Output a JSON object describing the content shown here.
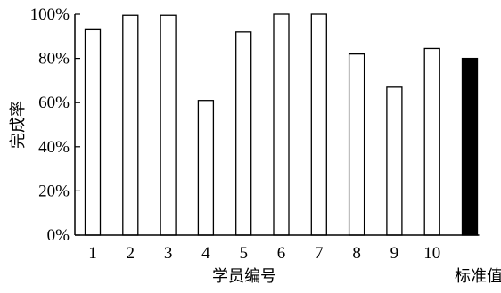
{
  "chart_data": {
    "type": "bar",
    "categories": [
      "1",
      "2",
      "3",
      "4",
      "5",
      "6",
      "7",
      "8",
      "9",
      "10",
      "标准值"
    ],
    "values": [
      93,
      99.5,
      99.5,
      61,
      92,
      100,
      100,
      82,
      67,
      84.5,
      80
    ],
    "title": "",
    "xlabel": "学员编号",
    "ylabel": "完成率",
    "ylim": [
      0,
      100
    ],
    "yticks": [
      0,
      20,
      40,
      60,
      80,
      100
    ],
    "ytick_labels": [
      "0%",
      "20%",
      "40%",
      "60%",
      "80%",
      "100%"
    ],
    "grid": false,
    "legend": "none",
    "bar_fill": [
      "#ffffff",
      "#ffffff",
      "#ffffff",
      "#ffffff",
      "#ffffff",
      "#ffffff",
      "#ffffff",
      "#ffffff",
      "#ffffff",
      "#ffffff",
      "#000000"
    ],
    "bar_stroke": "#000000"
  }
}
